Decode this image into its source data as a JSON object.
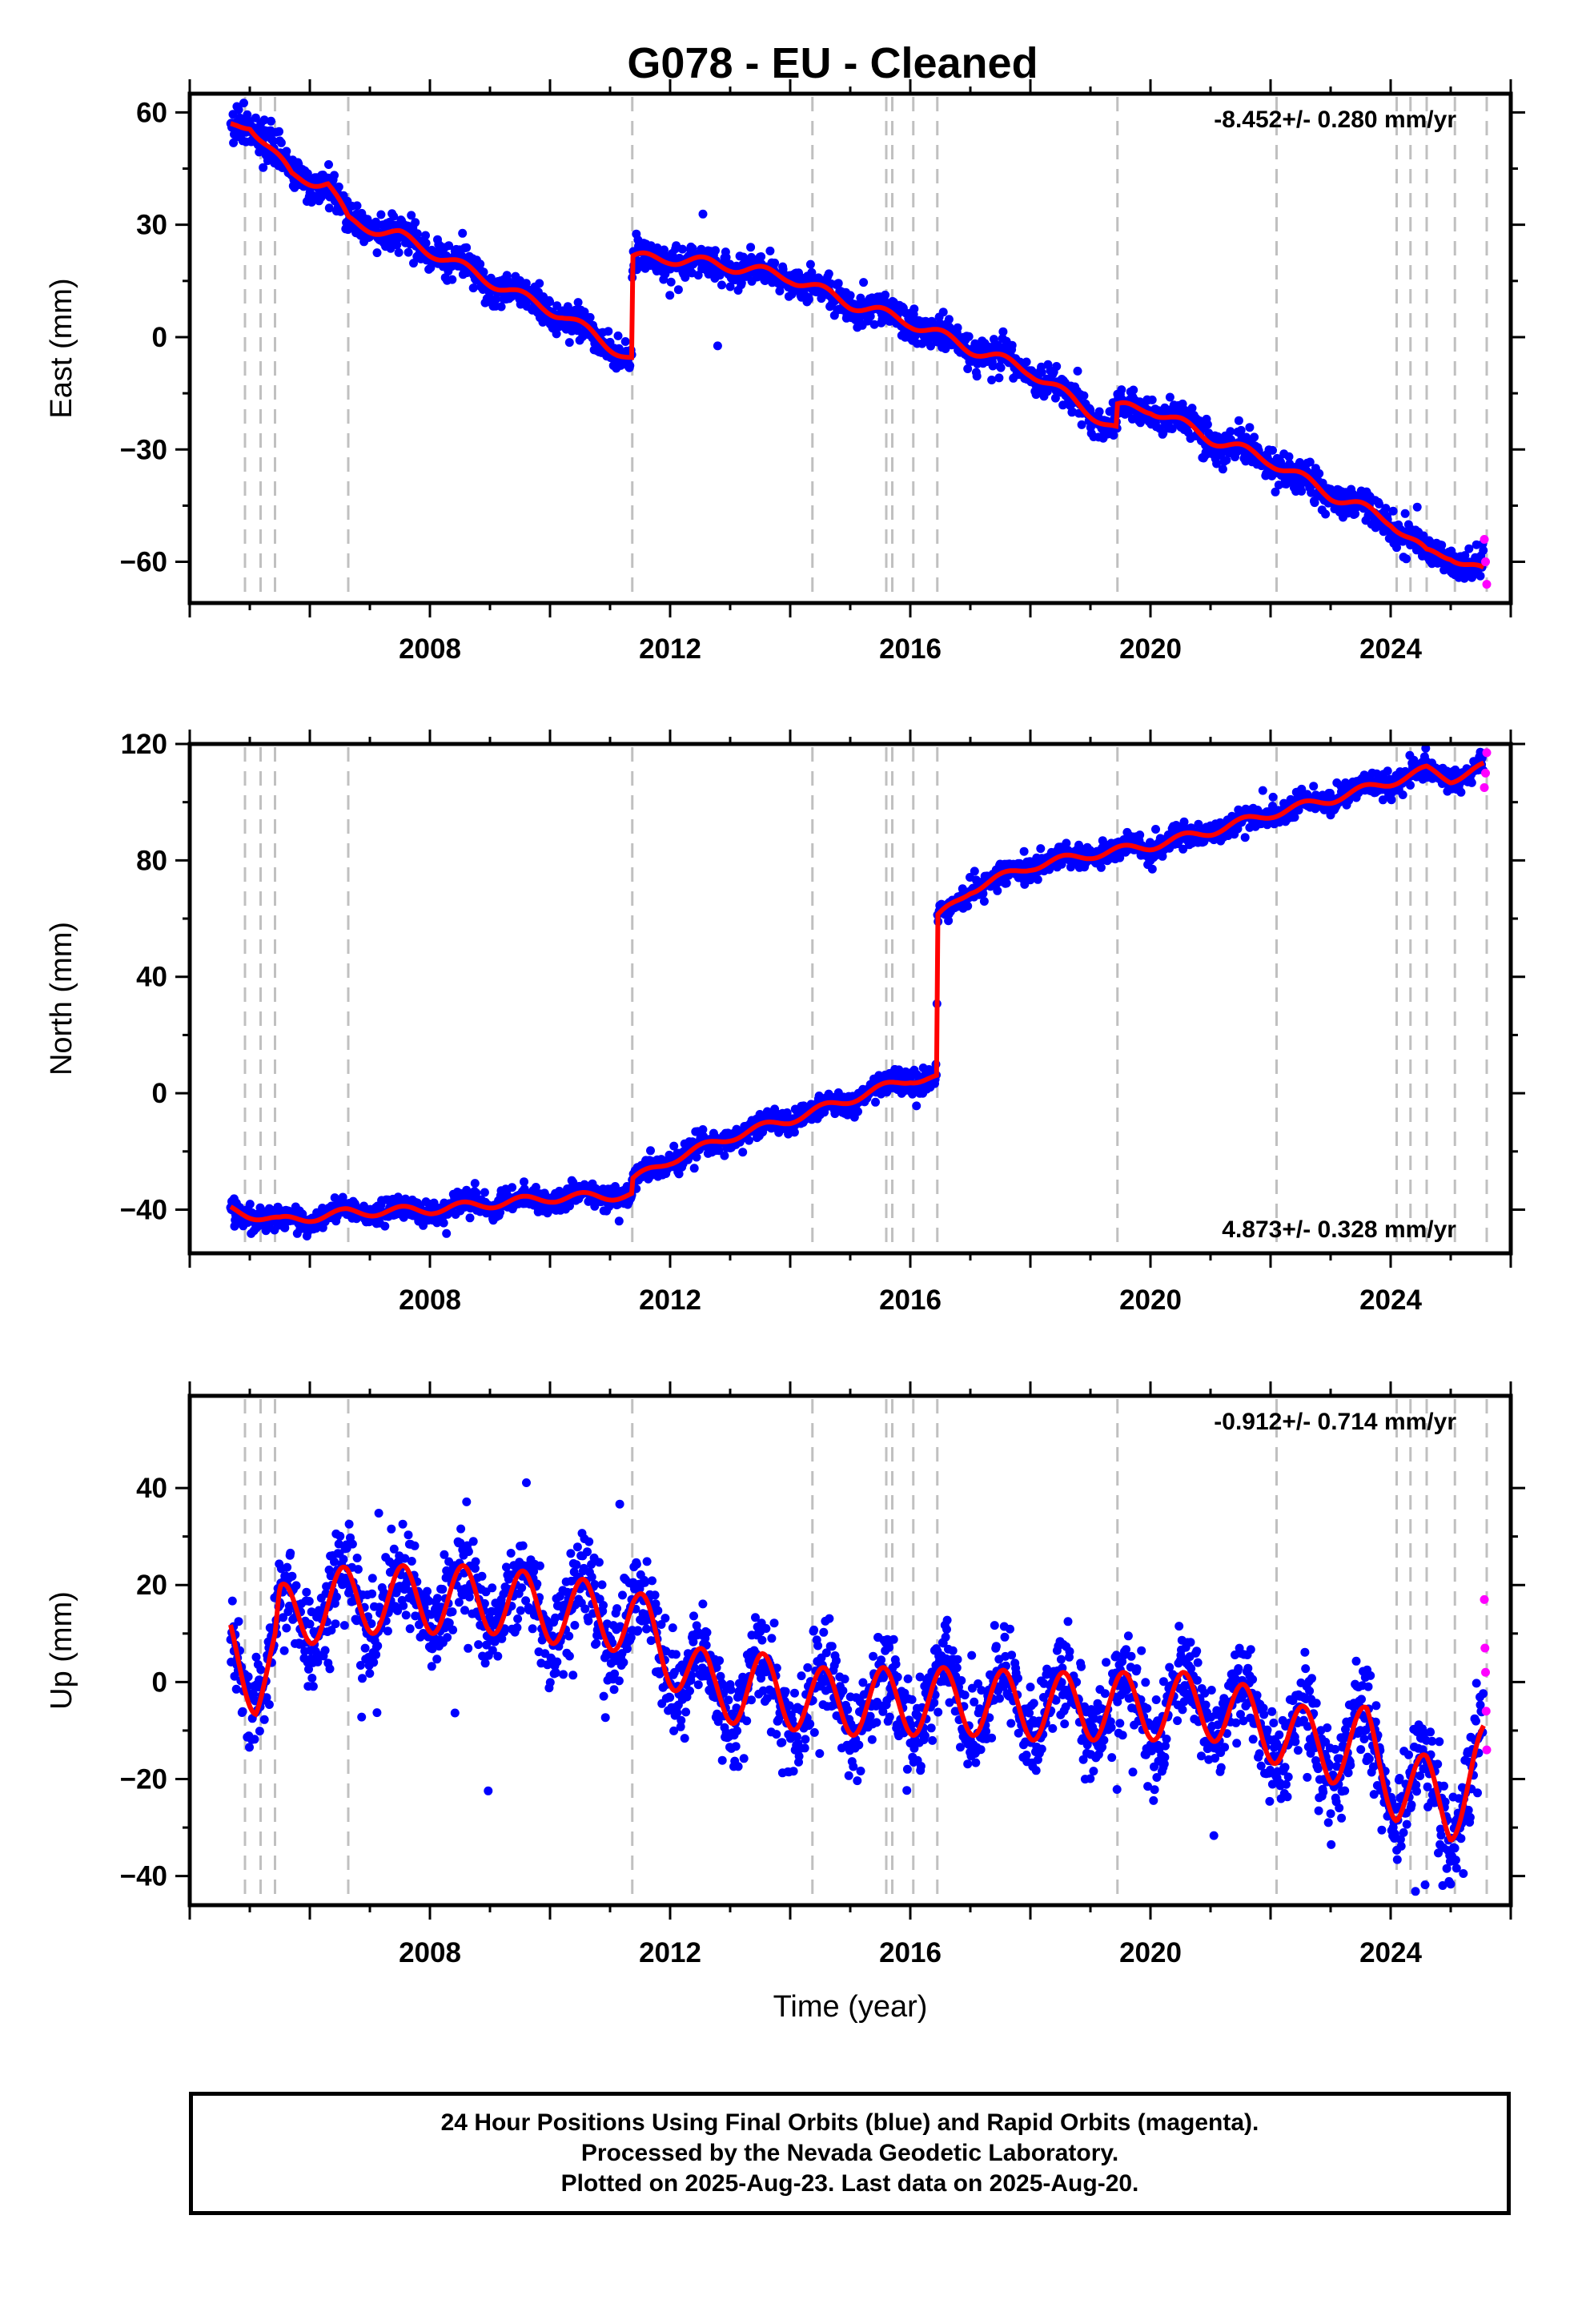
{
  "title": "G078  - EU - Cleaned",
  "footer": {
    "line1": "24 Hour Positions Using Final Orbits (blue) and Rapid Orbits (magenta).",
    "line2": "Processed by the Nevada Geodetic Laboratory.",
    "line3": "Plotted on 2025-Aug-23. Last data on 2025-Aug-20."
  },
  "colors": {
    "final": "#0000ff",
    "rapid": "#ff00ff",
    "model": "#ff0000",
    "events": "#c0c0c0"
  },
  "chart_data": [
    {
      "type": "scatter",
      "panel": "east",
      "xlabel": "",
      "ylabel": "East (mm)",
      "xlim": [
        2004.0,
        2026.0
      ],
      "ylim": [
        -71,
        65
      ],
      "xticks": [
        2008,
        2012,
        2016,
        2020,
        2024
      ],
      "yticks": [
        -60,
        -30,
        0,
        30,
        60
      ],
      "rate_label": "-8.452+/- 0.280 mm/yr",
      "rate_position": "top-right",
      "event_lines": [
        2004.92,
        2005.18,
        2005.42,
        2006.64,
        2011.37,
        2014.37,
        2015.6,
        2015.7,
        2016.05,
        2016.45,
        2019.45,
        2022.1,
        2024.1,
        2024.33,
        2024.6,
        2025.07,
        2025.6
      ],
      "model_keypoints": [
        [
          2004.68,
          56
        ],
        [
          2005.0,
          57
        ],
        [
          2005.7,
          43
        ],
        [
          2006.3,
          41
        ],
        [
          2006.64,
          31
        ],
        [
          2007.5,
          27
        ],
        [
          2008.5,
          19
        ],
        [
          2009.5,
          11
        ],
        [
          2010.2,
          6
        ],
        [
          2011.36,
          -6
        ],
        [
          2011.37,
          21
        ],
        [
          2012.0,
          21
        ],
        [
          2013.0,
          19
        ],
        [
          2014.0,
          16
        ],
        [
          2015.0,
          9
        ],
        [
          2016.0,
          4
        ],
        [
          2017.0,
          -3
        ],
        [
          2018.0,
          -9
        ],
        [
          2019.44,
          -25
        ],
        [
          2019.45,
          -19
        ],
        [
          2020.0,
          -19
        ],
        [
          2021.0,
          -27
        ],
        [
          2022.0,
          -33
        ],
        [
          2023.0,
          -42
        ],
        [
          2024.0,
          -49
        ],
        [
          2024.6,
          -58
        ],
        [
          2025.0,
          -58
        ],
        [
          2025.55,
          -63
        ]
      ],
      "seasonal_amplitude": 1.5,
      "scatter_sigma": 2.2,
      "rapid": {
        "x": [
          2025.56,
          2025.58,
          2025.6
        ],
        "y": [
          -54,
          -60,
          -66
        ]
      }
    },
    {
      "type": "scatter",
      "panel": "north",
      "xlabel": "",
      "ylabel": "North (mm)",
      "xlim": [
        2004.0,
        2026.0
      ],
      "ylim": [
        -55,
        120
      ],
      "xticks": [
        2008,
        2012,
        2016,
        2020,
        2024
      ],
      "yticks": [
        -40,
        0,
        40,
        80,
        120
      ],
      "rate_label": "4.873+/- 0.328 mm/yr",
      "rate_position": "bottom-right",
      "event_lines": [
        2004.92,
        2005.18,
        2005.42,
        2006.64,
        2011.37,
        2014.37,
        2015.6,
        2015.7,
        2016.05,
        2016.45,
        2019.45,
        2022.1,
        2024.1,
        2024.33,
        2024.6,
        2025.07,
        2025.6
      ],
      "model_keypoints": [
        [
          2004.68,
          -40
        ],
        [
          2005.5,
          -44
        ],
        [
          2006.64,
          -41
        ],
        [
          2008.0,
          -40
        ],
        [
          2009.0,
          -38
        ],
        [
          2010.0,
          -36
        ],
        [
          2011.36,
          -35
        ],
        [
          2011.37,
          -30
        ],
        [
          2012.0,
          -23
        ],
        [
          2013.0,
          -15
        ],
        [
          2014.0,
          -9
        ],
        [
          2015.0,
          -2
        ],
        [
          2016.0,
          5
        ],
        [
          2016.44,
          5
        ],
        [
          2016.45,
          60
        ],
        [
          2017.0,
          70
        ],
        [
          2018.0,
          78
        ],
        [
          2019.0,
          82
        ],
        [
          2020.0,
          85
        ],
        [
          2021.0,
          90
        ],
        [
          2022.0,
          96
        ],
        [
          2023.0,
          101
        ],
        [
          2024.0,
          107
        ],
        [
          2024.6,
          111
        ],
        [
          2025.0,
          108
        ],
        [
          2025.55,
          112
        ]
      ],
      "seasonal_amplitude": 1.5,
      "scatter_sigma": 2.0,
      "rapid": {
        "x": [
          2025.56,
          2025.58,
          2025.6
        ],
        "y": [
          105,
          110,
          117
        ]
      }
    },
    {
      "type": "scatter",
      "panel": "up",
      "xlabel": "Time (year)",
      "ylabel": "Up (mm)",
      "xlim": [
        2004.0,
        2026.0
      ],
      "ylim": [
        -46,
        59
      ],
      "xticks": [
        2008,
        2012,
        2016,
        2020,
        2024
      ],
      "yticks": [
        -40,
        -20,
        0,
        20,
        40
      ],
      "rate_label": "-0.912+/- 0.714 mm/yr",
      "rate_position": "top-right",
      "event_lines": [
        2004.92,
        2005.18,
        2005.42,
        2006.64,
        2011.37,
        2014.37,
        2015.6,
        2015.7,
        2016.05,
        2016.45,
        2019.45,
        2022.1,
        2024.1,
        2024.33,
        2024.6,
        2025.07,
        2025.6
      ],
      "model_keypoints": [
        [
          2004.68,
          7
        ],
        [
          2005.1,
          0
        ],
        [
          2005.42,
          5
        ],
        [
          2005.5,
          13
        ],
        [
          2006.64,
          17
        ],
        [
          2008.0,
          17
        ],
        [
          2009.0,
          17
        ],
        [
          2010.0,
          15
        ],
        [
          2011.37,
          13
        ],
        [
          2012.0,
          6
        ],
        [
          2012.7,
          -2
        ],
        [
          2013.5,
          -1
        ],
        [
          2014.37,
          -4
        ],
        [
          2015.0,
          -4
        ],
        [
          2016.0,
          -4
        ],
        [
          2017.0,
          -4
        ],
        [
          2018.0,
          -5
        ],
        [
          2019.0,
          -5
        ],
        [
          2020.0,
          -5
        ],
        [
          2021.0,
          -5
        ],
        [
          2022.1,
          -10
        ],
        [
          2023.0,
          -14
        ],
        [
          2023.6,
          -12
        ],
        [
          2024.1,
          -22
        ],
        [
          2024.6,
          -22
        ],
        [
          2025.0,
          -26
        ],
        [
          2025.55,
          -16
        ]
      ],
      "seasonal_amplitude": 7,
      "scatter_sigma": 4.8,
      "rapid": {
        "x": [
          2025.56,
          2025.57,
          2025.58,
          2025.59,
          2025.6
        ],
        "y": [
          17,
          7,
          2,
          -6,
          -14
        ]
      }
    }
  ]
}
